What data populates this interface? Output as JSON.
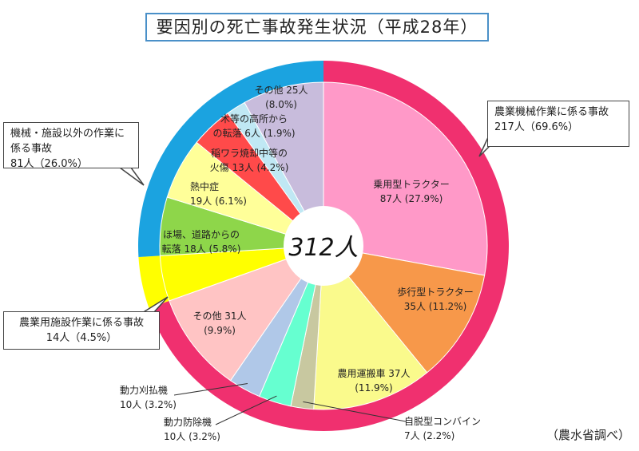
{
  "title": "要因別の死亡事故発生状況（平成28年）",
  "source_note": "（農水省調べ）",
  "chart_data": {
    "type": "pie",
    "total_label": "312人",
    "total": 312,
    "groups": [
      {
        "key": "agri",
        "line1": "農業機械作業に係る事故",
        "line2": "217人（69.6%）",
        "value": 217,
        "color": "#f0306f"
      },
      {
        "key": "facility",
        "line1": "農業用施設作業に係る事故",
        "line2": "14人（4.5%）",
        "value": 14,
        "color": "#ffff00"
      },
      {
        "key": "other",
        "line1": "機械・施設以外の作業に",
        "line1b": "係る事故",
        "line2": "81人（26.0%）",
        "value": 81,
        "color": "#1ba3e0"
      }
    ],
    "slices": [
      {
        "group": "agri",
        "name": "乗用型トラクター",
        "value": 87,
        "l1": "乗用型トラクター",
        "l2": "87人 (27.9%)",
        "color": "#ff99c8"
      },
      {
        "group": "agri",
        "name": "歩行型トラクター",
        "value": 35,
        "l1": "歩行型トラクター",
        "l2": "35人 (11.2%)",
        "color": "#f7984a"
      },
      {
        "group": "agri",
        "name": "農用運搬車",
        "value": 37,
        "l1": "農用運搬車 37人",
        "l2": "(11.9%)",
        "color": "#fafa8c"
      },
      {
        "group": "agri",
        "name": "自脱型コンバイン",
        "value": 7,
        "l1": "自脱型コンバイン",
        "l2": "7人 (2.2%)",
        "color": "#c8c8a0"
      },
      {
        "group": "agri",
        "name": "動力防除機",
        "value": 10,
        "l1": "動力防除機",
        "l2": "10人 (3.2%)",
        "color": "#66ffd0"
      },
      {
        "group": "agri",
        "name": "動力刈払機",
        "value": 10,
        "l1": "動力刈払機",
        "l2": "10人 (3.2%)",
        "color": "#b0c8e8"
      },
      {
        "group": "agri",
        "name": "その他",
        "value": 31,
        "l1": "その他 31人",
        "l2": "(9.9%)",
        "color": "#ffc4c4"
      },
      {
        "group": "facility",
        "name": "農業用施設作業",
        "value": 14,
        "color": "#ffff00"
      },
      {
        "group": "other",
        "name": "ほ場、道路からの転落",
        "value": 18,
        "l1": "ほ場、道路からの",
        "l2": "転落  18人 (5.8%)",
        "color": "#8ed64a"
      },
      {
        "group": "other",
        "name": "熱中症",
        "value": 19,
        "l1": "熱中症",
        "l2": "19人 (6.1%)",
        "color": "#ffff99"
      },
      {
        "group": "other",
        "name": "稲ワラ焼却中等の火傷",
        "value": 13,
        "l1": "稲ワラ焼却中等の",
        "l2": "火傷 13人 (4.2%)",
        "color": "#ff4a4a"
      },
      {
        "group": "other",
        "name": "木等の高所からの転落",
        "value": 6,
        "l1": "木等の高所から",
        "l2": "の転落 6人 (1.9%)",
        "color": "#c0e8f4"
      },
      {
        "group": "other",
        "name": "その他",
        "value": 25,
        "l1": "その他 25人",
        "l2": "(8.0%)",
        "color": "#c8bcdc"
      }
    ]
  }
}
